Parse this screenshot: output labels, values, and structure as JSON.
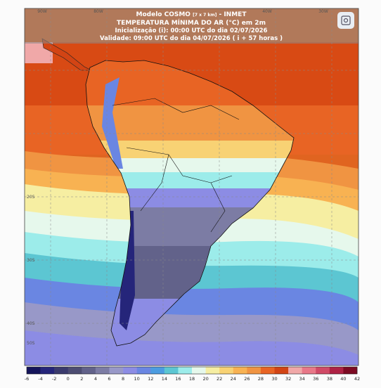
{
  "header": {
    "model": "Modelo COSMO",
    "resolution": "[7 x 7 km]",
    "agency": "- INMET",
    "title": "TEMPERATURA MÍNIMA DO AR (°C) em 2m",
    "init": "Inicialização (i): 00:00 UTC do dia 02/07/2026",
    "valid": "Validade: 09:00 UTC do dia 04/07/2026 ( i + 57 horas )"
  },
  "map": {
    "top_labels": [
      "90W",
      "80W",
      "40W",
      "30W"
    ],
    "left_labels": [
      "20S",
      "30S",
      "40S",
      "50S"
    ]
  },
  "colorbar": {
    "labels": [
      -6,
      -4,
      -2,
      0,
      2,
      4,
      6,
      8,
      10,
      12,
      14,
      16,
      18,
      20,
      22,
      24,
      26,
      28,
      30,
      32,
      34,
      36,
      38,
      40,
      42
    ],
    "colors": [
      "#14145a",
      "#25257a",
      "#3a3a6c",
      "#4d4d72",
      "#62628a",
      "#7c7ca4",
      "#9898c8",
      "#8c8ce4",
      "#6a86e2",
      "#4c9ce0",
      "#5cc6d2",
      "#9cecea",
      "#e6f8ec",
      "#f6eea2",
      "#f8d274",
      "#f8b252",
      "#f09442",
      "#e86424",
      "#d24414",
      "#f0a8a8",
      "#e87888",
      "#d04a66",
      "#ae2244",
      "#7c0a22"
    ]
  }
}
